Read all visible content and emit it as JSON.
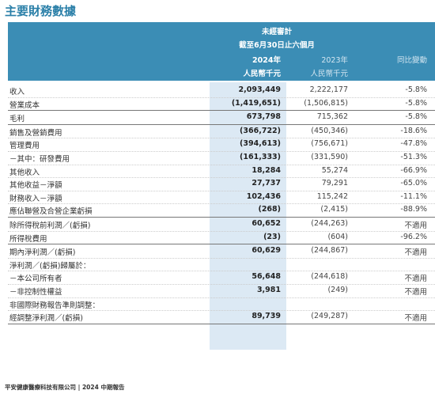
{
  "title": "主要財務數據",
  "header": {
    "audit": "未經審計",
    "period": "截至6月30日止六個月",
    "col_2024": "2024年",
    "col_2023": "2023年",
    "col_change": "同比變動",
    "unit_2024": "人民幣千元",
    "unit_2023": "人民幣千元"
  },
  "sections": [
    [
      [
        "收入",
        "2,093,449",
        "2,222,177",
        "-5.8%"
      ],
      [
        "營業成本",
        "(1,419,651)",
        "(1,506,815)",
        "-5.8%"
      ]
    ],
    [
      [
        "毛利",
        "673,798",
        "715,362",
        "-5.8%"
      ]
    ],
    [
      [
        "銷售及營銷費用",
        "(366,722)",
        "(450,346)",
        "-18.6%"
      ],
      [
        "管理費用",
        "(394,613)",
        "(756,671)",
        "-47.8%"
      ],
      [
        "－其中：研發費用",
        "(161,333)",
        "(331,590)",
        "-51.3%"
      ],
      [
        "其他收入",
        "18,284",
        "55,274",
        "-66.9%"
      ],
      [
        "其他收益－淨額",
        "27,737",
        "79,291",
        "-65.0%"
      ],
      [
        "財務收入－淨額",
        "102,436",
        "115,242",
        "-11.1%"
      ],
      [
        "應佔聯營及合營企業虧損",
        "(268)",
        "(2,415)",
        "-88.9%"
      ]
    ],
    [
      [
        "除所得稅前利潤／(虧損)",
        "60,652",
        "(244,263)",
        "不適用"
      ],
      [
        "所得稅費用",
        "(23)",
        "(604)",
        "-96.2%"
      ]
    ],
    [
      [
        "期內淨利潤／(虧損)",
        "60,629",
        "(244,867)",
        "不適用"
      ],
      [
        "淨利潤／(虧損)歸屬於："
      ],
      [
        "－本公司所有者",
        "56,648",
        "(244,618)",
        "不適用"
      ],
      [
        "－非控制性權益",
        "3,981",
        "(249)",
        "不適用"
      ],
      [
        "非國際財務報告準則調整："
      ],
      [
        "經調整淨利潤／(虧損)",
        "89,739",
        "(249,287)",
        "不適用"
      ]
    ]
  ],
  "footer": "平安健康醫療科技有限公司 | 2024 中期報告"
}
